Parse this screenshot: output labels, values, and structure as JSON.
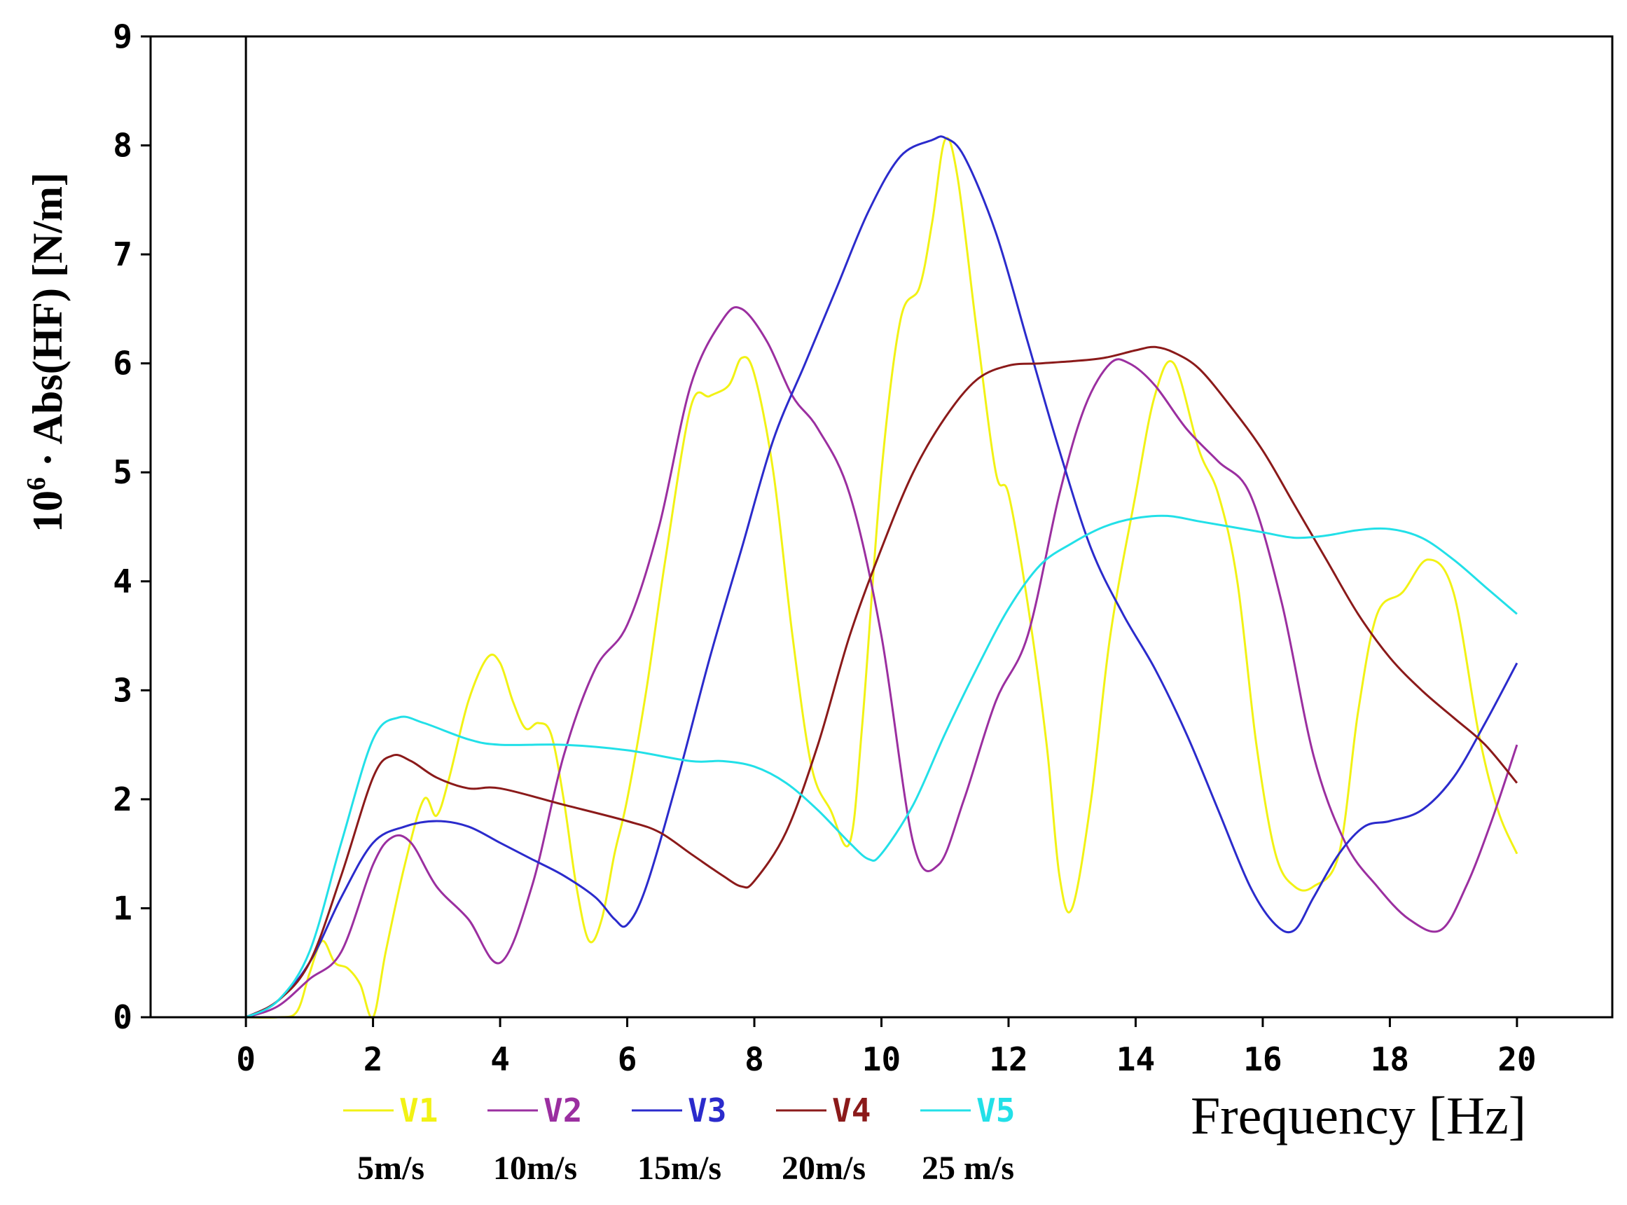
{
  "chart_data": {
    "type": "line",
    "title": "",
    "xlabel": "Frequency [Hz]",
    "ylabel_prefix": "10",
    "ylabel_exponent": "6",
    "ylabel_main": " · Abs(HF) [N/m]",
    "xlim": [
      -1.5,
      21.5
    ],
    "ylim": [
      0,
      9
    ],
    "xticks": [
      0,
      2,
      4,
      6,
      8,
      10,
      12,
      14,
      16,
      18,
      20
    ],
    "xtick_labels": [
      "0",
      "2",
      "4",
      "6",
      "8",
      "10",
      "12",
      "14",
      "16",
      "18",
      "20"
    ],
    "yticks": [
      0,
      1,
      2,
      3,
      4,
      5,
      6,
      7,
      8,
      9
    ],
    "ytick_labels": [
      "0",
      "1",
      "2",
      "3",
      "4",
      "5",
      "6",
      "7",
      "8",
      "9"
    ],
    "vline_x": 0,
    "grid": false,
    "series": [
      {
        "name": "V1",
        "speed": "5m/s",
        "color": "#f2f215",
        "x": [
          0,
          0.5,
          0.8,
          1.0,
          1.2,
          1.4,
          1.6,
          1.8,
          2.0,
          2.2,
          2.5,
          2.8,
          3.0,
          3.2,
          3.5,
          3.8,
          4.0,
          4.2,
          4.4,
          4.6,
          4.8,
          5.0,
          5.2,
          5.4,
          5.6,
          5.8,
          6.0,
          6.3,
          6.6,
          7.0,
          7.3,
          7.6,
          7.8,
          8.0,
          8.3,
          8.6,
          8.9,
          9.2,
          9.5,
          9.7,
          10.0,
          10.3,
          10.6,
          10.8,
          11.0,
          11.2,
          11.5,
          11.8,
          12.0,
          12.3,
          12.6,
          12.8,
          13.0,
          13.3,
          13.6,
          14.0,
          14.3,
          14.6,
          15.0,
          15.3,
          15.6,
          15.9,
          16.2,
          16.5,
          16.8,
          17.2,
          17.5,
          17.8,
          18.2,
          18.6,
          19.0,
          19.4,
          19.7,
          20.0
        ],
        "values": [
          0,
          0,
          0.05,
          0.4,
          0.7,
          0.5,
          0.45,
          0.3,
          0.0,
          0.6,
          1.4,
          2.0,
          1.85,
          2.2,
          2.9,
          3.3,
          3.25,
          2.9,
          2.65,
          2.7,
          2.6,
          2.0,
          1.2,
          0.7,
          0.9,
          1.5,
          2.0,
          3.0,
          4.2,
          5.6,
          5.7,
          5.8,
          6.05,
          5.9,
          5.0,
          3.5,
          2.3,
          1.9,
          1.6,
          2.7,
          5.0,
          6.4,
          6.7,
          7.3,
          8.05,
          7.7,
          6.3,
          5.0,
          4.8,
          3.8,
          2.5,
          1.3,
          1.0,
          2.0,
          3.5,
          4.8,
          5.7,
          6.0,
          5.2,
          4.8,
          4.0,
          2.5,
          1.5,
          1.2,
          1.2,
          1.5,
          2.8,
          3.7,
          3.9,
          4.2,
          3.9,
          2.6,
          1.9,
          1.5
        ]
      },
      {
        "name": "V2",
        "speed": "10m/s",
        "color": "#9b2fa0",
        "x": [
          0,
          0.5,
          1.0,
          1.5,
          2.0,
          2.3,
          2.6,
          3.0,
          3.5,
          4.0,
          4.5,
          5.0,
          5.5,
          6.0,
          6.5,
          7.0,
          7.5,
          7.8,
          8.2,
          8.6,
          9.0,
          9.5,
          10.0,
          10.5,
          10.9,
          11.3,
          11.8,
          12.3,
          12.8,
          13.2,
          13.6,
          13.9,
          14.3,
          14.8,
          15.3,
          15.8,
          16.3,
          16.8,
          17.3,
          17.8,
          18.3,
          18.8,
          19.2,
          19.6,
          20.0
        ],
        "values": [
          0,
          0.1,
          0.35,
          0.6,
          1.4,
          1.65,
          1.6,
          1.2,
          0.9,
          0.5,
          1.2,
          2.4,
          3.2,
          3.6,
          4.5,
          5.8,
          6.4,
          6.5,
          6.2,
          5.7,
          5.4,
          4.8,
          3.5,
          1.6,
          1.4,
          2.0,
          2.9,
          3.5,
          4.8,
          5.6,
          6.0,
          6.0,
          5.8,
          5.4,
          5.1,
          4.8,
          3.8,
          2.4,
          1.6,
          1.2,
          0.9,
          0.8,
          1.2,
          1.8,
          2.5
        ]
      },
      {
        "name": "V3",
        "speed": "15m/s",
        "color": "#2b2bcc",
        "x": [
          0,
          0.5,
          1.0,
          1.5,
          2.0,
          2.5,
          3.0,
          3.5,
          4.0,
          4.5,
          5.0,
          5.5,
          5.8,
          6.0,
          6.3,
          6.8,
          7.3,
          7.8,
          8.3,
          8.8,
          9.3,
          9.8,
          10.3,
          10.8,
          11.0,
          11.3,
          11.8,
          12.3,
          12.8,
          13.3,
          13.8,
          14.3,
          14.8,
          15.3,
          15.8,
          16.2,
          16.5,
          16.8,
          17.2,
          17.6,
          18.0,
          18.5,
          19.0,
          19.5,
          20.0
        ],
        "values": [
          0,
          0.15,
          0.5,
          1.1,
          1.6,
          1.75,
          1.8,
          1.75,
          1.6,
          1.45,
          1.3,
          1.1,
          0.9,
          0.85,
          1.2,
          2.2,
          3.3,
          4.3,
          5.3,
          6.0,
          6.7,
          7.4,
          7.9,
          8.05,
          8.07,
          7.9,
          7.2,
          6.2,
          5.2,
          4.3,
          3.7,
          3.2,
          2.6,
          1.9,
          1.2,
          0.85,
          0.8,
          1.1,
          1.5,
          1.75,
          1.8,
          1.9,
          2.2,
          2.7,
          3.25
        ]
      },
      {
        "name": "V4",
        "speed": "20m/s",
        "color": "#8b1a1a",
        "x": [
          0,
          0.5,
          1.0,
          1.5,
          2.0,
          2.3,
          2.6,
          3.0,
          3.5,
          4.0,
          5.0,
          6.0,
          6.5,
          7.0,
          7.5,
          7.8,
          8.0,
          8.5,
          9.0,
          9.5,
          10.0,
          10.5,
          11.0,
          11.5,
          12.0,
          12.5,
          13.0,
          13.5,
          14.0,
          14.3,
          14.6,
          15.0,
          15.5,
          16.0,
          16.5,
          17.0,
          17.5,
          18.0,
          18.5,
          19.0,
          19.5,
          20.0
        ],
        "values": [
          0,
          0.15,
          0.5,
          1.3,
          2.2,
          2.4,
          2.35,
          2.2,
          2.1,
          2.1,
          1.95,
          1.8,
          1.7,
          1.5,
          1.3,
          1.2,
          1.25,
          1.7,
          2.5,
          3.5,
          4.3,
          5.0,
          5.5,
          5.85,
          5.98,
          6.0,
          6.02,
          6.05,
          6.12,
          6.15,
          6.1,
          5.95,
          5.6,
          5.2,
          4.7,
          4.2,
          3.7,
          3.3,
          3.0,
          2.75,
          2.5,
          2.15
        ]
      },
      {
        "name": "V5",
        "speed": "25 m/s",
        "color": "#22e0e8",
        "x": [
          0,
          0.5,
          1.0,
          1.5,
          2.0,
          2.4,
          2.8,
          3.5,
          4.0,
          5.0,
          6.0,
          7.0,
          7.5,
          8.0,
          8.5,
          9.0,
          9.5,
          9.8,
          10.0,
          10.5,
          11.0,
          11.5,
          12.0,
          12.5,
          13.0,
          13.5,
          14.0,
          14.5,
          15.0,
          15.5,
          16.0,
          16.5,
          17.0,
          17.5,
          18.0,
          18.5,
          19.0,
          19.5,
          20.0
        ],
        "values": [
          0,
          0.15,
          0.6,
          1.6,
          2.55,
          2.75,
          2.7,
          2.55,
          2.5,
          2.5,
          2.45,
          2.35,
          2.35,
          2.3,
          2.15,
          1.9,
          1.6,
          1.45,
          1.5,
          1.95,
          2.6,
          3.2,
          3.75,
          4.15,
          4.35,
          4.5,
          4.58,
          4.6,
          4.55,
          4.5,
          4.45,
          4.4,
          4.42,
          4.47,
          4.48,
          4.4,
          4.2,
          3.95,
          3.7
        ]
      }
    ],
    "legend": {
      "placement": "bottom-left",
      "entries": [
        {
          "name": "V1",
          "speed": "5m/s"
        },
        {
          "name": "V2",
          "speed": "10m/s"
        },
        {
          "name": "V3",
          "speed": "15m/s"
        },
        {
          "name": "V4",
          "speed": "20m/s"
        },
        {
          "name": "V5",
          "speed": "25 m/s"
        }
      ]
    }
  }
}
